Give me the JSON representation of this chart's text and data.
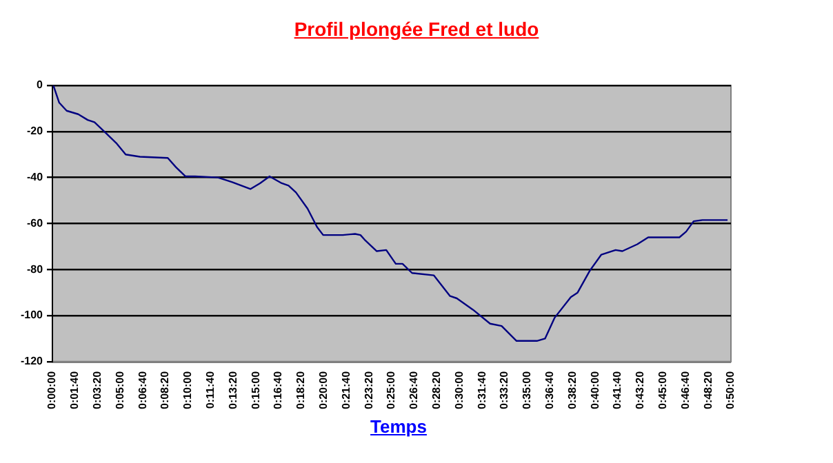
{
  "chart_data": {
    "type": "line",
    "title": "Profil plongée Fred et ludo",
    "xlabel": "Temps",
    "x": [
      0.07,
      0.5,
      1.05,
      1.9,
      2.6,
      3.1,
      3.9,
      4.7,
      5.4,
      6.45,
      8.5,
      9.1,
      9.8,
      10.5,
      12.2,
      13.25,
      14.6,
      15.3,
      16.0,
      16.9,
      17.4,
      17.95,
      18.8,
      19.5,
      19.95,
      21.4,
      22.3,
      22.7,
      23.0,
      23.9,
      24.6,
      25.3,
      25.8,
      26.5,
      28.1,
      29.3,
      29.8,
      31.0,
      32.25,
      33.1,
      34.2,
      35.7,
      36.3,
      37.0,
      38.2,
      38.7,
      39.6,
      40.45,
      41.5,
      42.0,
      43.1,
      43.9,
      46.2,
      46.7,
      47.25,
      47.9,
      49.75
    ],
    "series": [
      {
        "color": "#000080",
        "values": [
          0,
          -7.5,
          -11,
          -12.5,
          -15,
          -16,
          -20.5,
          -25,
          -30,
          -31,
          -31.5,
          -35.5,
          -39.5,
          -39.5,
          -40,
          -42,
          -45,
          -42.5,
          -39.5,
          -42.5,
          -43.5,
          -46.5,
          -53.5,
          -61.5,
          -65,
          -65,
          -64.5,
          -65,
          -67,
          -72,
          -71.5,
          -77.5,
          -77.5,
          -81.5,
          -82.5,
          -91.5,
          -92.5,
          -97.5,
          -103.5,
          -104.5,
          -111,
          -111,
          -110,
          -101,
          -92,
          -90,
          -80.5,
          -73.5,
          -71.5,
          -72,
          -69,
          -66,
          -66,
          -63.5,
          -59,
          -58.5,
          -58.5
        ]
      }
    ],
    "xlim": [
      0,
      50
    ],
    "xticks": [
      {
        "value": 0,
        "label": "0:00:00"
      },
      {
        "value": 1.6667,
        "label": "0:01:40"
      },
      {
        "value": 3.3333,
        "label": "0:03:20"
      },
      {
        "value": 5,
        "label": "0:05:00"
      },
      {
        "value": 6.6667,
        "label": "0:06:40"
      },
      {
        "value": 8.3333,
        "label": "0:08:20"
      },
      {
        "value": 10,
        "label": "0:10:00"
      },
      {
        "value": 11.6667,
        "label": "0:11:40"
      },
      {
        "value": 13.3333,
        "label": "0:13:20"
      },
      {
        "value": 15,
        "label": "0:15:00"
      },
      {
        "value": 16.6667,
        "label": "0:16:40"
      },
      {
        "value": 18.3333,
        "label": "0:18:20"
      },
      {
        "value": 20,
        "label": "0:20:00"
      },
      {
        "value": 21.6667,
        "label": "0:21:40"
      },
      {
        "value": 23.3333,
        "label": "0:23:20"
      },
      {
        "value": 25,
        "label": "0:25:00"
      },
      {
        "value": 26.6667,
        "label": "0:26:40"
      },
      {
        "value": 28.3333,
        "label": "0:28:20"
      },
      {
        "value": 30,
        "label": "0:30:00"
      },
      {
        "value": 31.6667,
        "label": "0:31:40"
      },
      {
        "value": 33.3333,
        "label": "0:33:20"
      },
      {
        "value": 35,
        "label": "0:35:00"
      },
      {
        "value": 36.6667,
        "label": "0:36:40"
      },
      {
        "value": 38.3333,
        "label": "0:38:20"
      },
      {
        "value": 40,
        "label": "0:40:00"
      },
      {
        "value": 41.6667,
        "label": "0:41:40"
      },
      {
        "value": 43.3333,
        "label": "0:43:20"
      },
      {
        "value": 45,
        "label": "0:45:00"
      },
      {
        "value": 46.6667,
        "label": "0:46:40"
      },
      {
        "value": 48.3333,
        "label": "0:48:20"
      },
      {
        "value": 50,
        "label": "0:50:00"
      }
    ],
    "ylim": [
      -120,
      0
    ],
    "yticks": [
      -120,
      -100,
      -80,
      -60,
      -40,
      -20,
      0
    ],
    "grid": "y",
    "legend": false,
    "marker": "none",
    "line_style": "solid"
  }
}
